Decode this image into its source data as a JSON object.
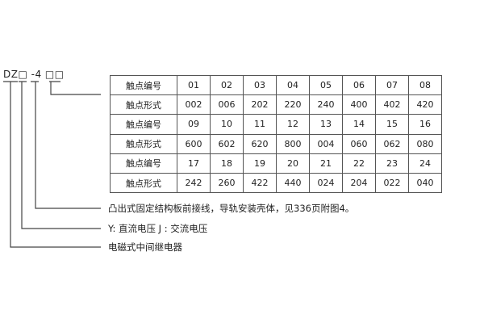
{
  "model_code": "DZ□ -4 □□",
  "table": {
    "rows": [
      {
        "label": "触点编号",
        "values": [
          "01",
          "02",
          "03",
          "04",
          "05",
          "06",
          "07",
          "08"
        ]
      },
      {
        "label": "触点形式",
        "values": [
          "002",
          "006",
          "202",
          "220",
          "240",
          "400",
          "402",
          "420"
        ]
      },
      {
        "label": "触点编号",
        "values": [
          "09",
          "10",
          "11",
          "12",
          "13",
          "14",
          "15",
          "16"
        ]
      },
      {
        "label": "触点形式",
        "values": [
          "600",
          "602",
          "620",
          "800",
          "004",
          "060",
          "062",
          "080"
        ]
      },
      {
        "label": "触点编号",
        "values": [
          "17",
          "18",
          "19",
          "20",
          "21",
          "22",
          "23",
          "24"
        ]
      },
      {
        "label": "触点形式",
        "values": [
          "242",
          "260",
          "422",
          "440",
          "024",
          "204",
          "022",
          "040"
        ]
      }
    ]
  },
  "notes": {
    "mounting": "凸出式固定结构板前接线，导轨安装壳体，见336页附图4。",
    "voltage": "Y: 直流电压   J : 交流电压",
    "type": "电磁式中间继电器"
  }
}
